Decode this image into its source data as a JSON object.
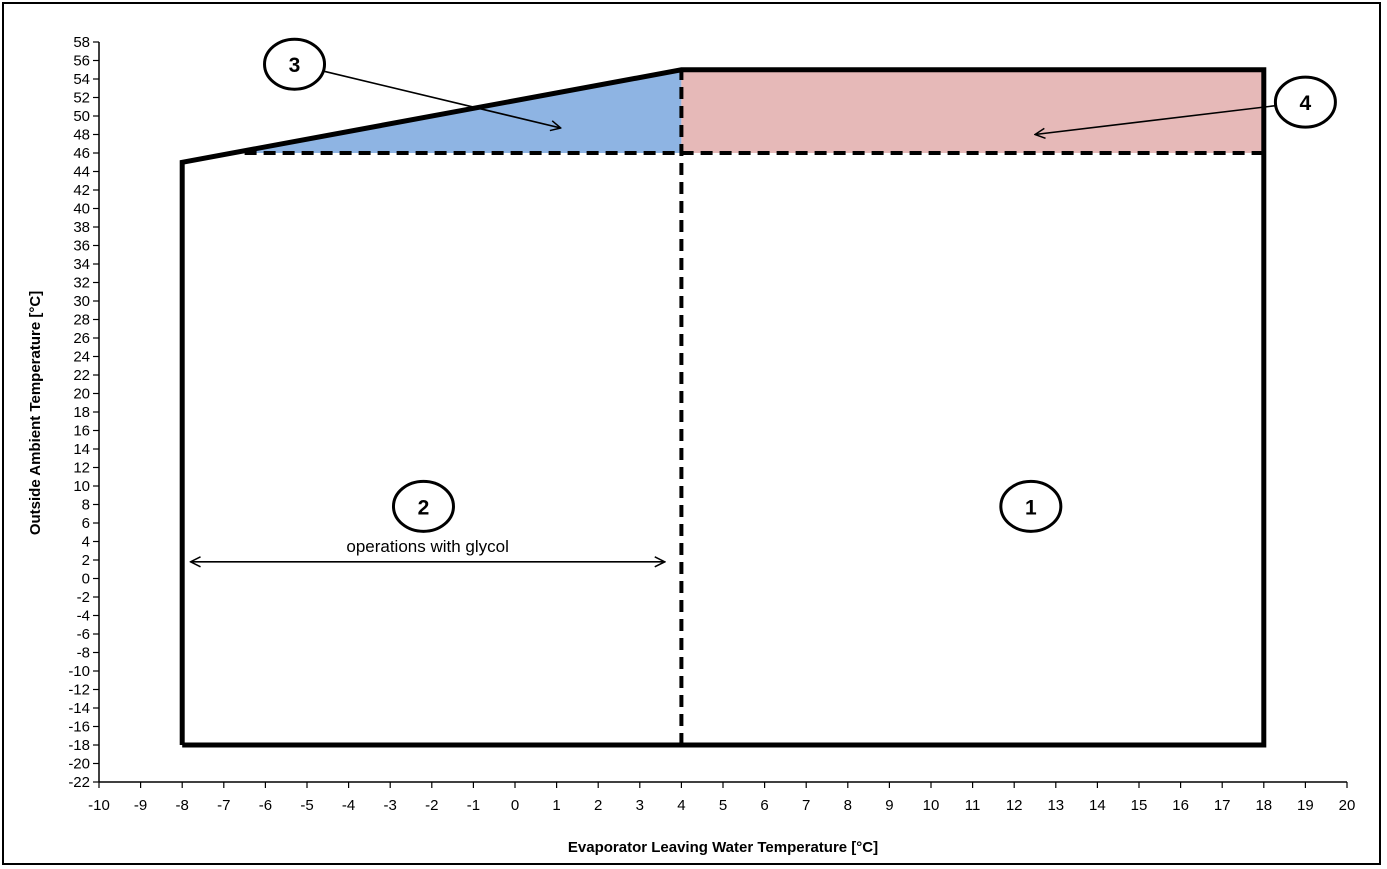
{
  "chart_data": {
    "type": "line",
    "xlabel": "Evaporator  Leaving Water Temperature [°C]",
    "ylabel": "Outside Ambient Temperature [°C]",
    "xlim": [
      -10,
      20
    ],
    "ylim": [
      -22,
      58
    ],
    "x_ticks": [
      -10,
      -9,
      -8,
      -7,
      -6,
      -5,
      -4,
      -3,
      -2,
      -1,
      0,
      1,
      2,
      3,
      4,
      5,
      6,
      7,
      8,
      9,
      10,
      11,
      12,
      13,
      14,
      15,
      16,
      17,
      18,
      19,
      20
    ],
    "y_ticks": [
      58,
      56,
      54,
      52,
      50,
      48,
      46,
      44,
      42,
      40,
      38,
      36,
      34,
      32,
      30,
      28,
      26,
      24,
      22,
      20,
      18,
      16,
      14,
      12,
      10,
      8,
      6,
      4,
      2,
      0,
      -2,
      -4,
      -6,
      -8,
      -10,
      -12,
      -14,
      -16,
      -18,
      -20,
      -22
    ],
    "grid": false,
    "envelope": {
      "style": "solid",
      "points": [
        [
          -8,
          -18
        ],
        [
          -8,
          45
        ],
        [
          4,
          55
        ],
        [
          18,
          55
        ],
        [
          18,
          -18
        ],
        [
          -8,
          -18
        ]
      ]
    },
    "dashed_lines": [
      {
        "points": [
          [
            -6.5,
            46
          ],
          [
            18,
            46
          ]
        ]
      },
      {
        "points": [
          [
            4,
            -18
          ],
          [
            4,
            55
          ]
        ]
      }
    ],
    "regions": [
      {
        "id": "3",
        "color": "#8eb4e3",
        "points": [
          [
            -6.5,
            46
          ],
          [
            4,
            46
          ],
          [
            4,
            55
          ],
          [
            -6.5,
            46.25
          ]
        ]
      },
      {
        "id": "4",
        "color": "#e6b9b8",
        "points": [
          [
            4,
            46
          ],
          [
            18,
            46
          ],
          [
            18,
            55
          ],
          [
            4,
            55
          ]
        ]
      }
    ],
    "annotations": [
      {
        "label": "1",
        "x": 12.4,
        "y": 7.8
      },
      {
        "label": "2",
        "x": -2.2,
        "y": 7.8
      },
      {
        "label": "3",
        "x": -5.3,
        "y": 55.6,
        "arrow_to": [
          1.1,
          48.7
        ]
      },
      {
        "label": "4",
        "x": 19.0,
        "y": 51.5,
        "arrow_to": [
          12.5,
          48.0
        ]
      }
    ],
    "range_arrow": {
      "text": "operations with glycol",
      "x_from": -7.8,
      "x_to": 3.6,
      "y": 1.8
    }
  }
}
